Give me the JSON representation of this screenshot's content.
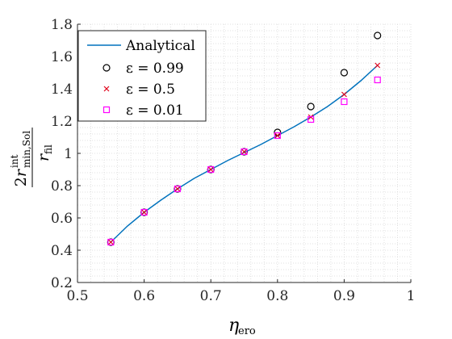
{
  "chart_data": {
    "type": "scatter",
    "xlim": [
      0.5,
      1.0
    ],
    "ylim": [
      0.2,
      1.8
    ],
    "xticks": [
      "0.5",
      "0.6",
      "0.7",
      "0.8",
      "0.9",
      "1"
    ],
    "yticks": [
      "0.2",
      "0.4",
      "0.6",
      "0.8",
      "1",
      "1.2",
      "1.4",
      "1.6",
      "1.8"
    ],
    "xlabel": "η_ero",
    "ylabel": "2r^int_min,Sol / r_fil",
    "grid": "minor dotted",
    "legend_position": "top-left",
    "line": {
      "name": "Analytical",
      "color": "#0072BD",
      "x": [
        0.55,
        0.575,
        0.6,
        0.625,
        0.65,
        0.675,
        0.7,
        0.725,
        0.75,
        0.775,
        0.8,
        0.825,
        0.85,
        0.875,
        0.9,
        0.925,
        0.95
      ],
      "y": [
        0.45,
        0.55,
        0.635,
        0.71,
        0.78,
        0.845,
        0.9,
        0.955,
        1.005,
        1.055,
        1.11,
        1.165,
        1.225,
        1.29,
        1.365,
        1.45,
        1.545
      ]
    },
    "series": [
      {
        "name": "ε = 0.99",
        "marker": "circle",
        "color": "#000000",
        "x": [
          0.55,
          0.6,
          0.65,
          0.7,
          0.75,
          0.8,
          0.85,
          0.9,
          0.95
        ],
        "y": [
          0.45,
          0.635,
          0.78,
          0.9,
          1.01,
          1.13,
          1.29,
          1.5,
          1.73
        ]
      },
      {
        "name": "ε = 0.5",
        "marker": "x",
        "color": "#e0001b",
        "x": [
          0.55,
          0.6,
          0.65,
          0.7,
          0.75,
          0.8,
          0.85,
          0.9,
          0.95
        ],
        "y": [
          0.45,
          0.635,
          0.78,
          0.9,
          1.01,
          1.11,
          1.225,
          1.365,
          1.545
        ]
      },
      {
        "name": "ε = 0.01",
        "marker": "square",
        "color": "#ff00ff",
        "x": [
          0.55,
          0.6,
          0.65,
          0.7,
          0.75,
          0.8,
          0.85,
          0.9,
          0.95
        ],
        "y": [
          0.45,
          0.635,
          0.78,
          0.9,
          1.01,
          1.11,
          1.21,
          1.32,
          1.455
        ]
      }
    ]
  }
}
